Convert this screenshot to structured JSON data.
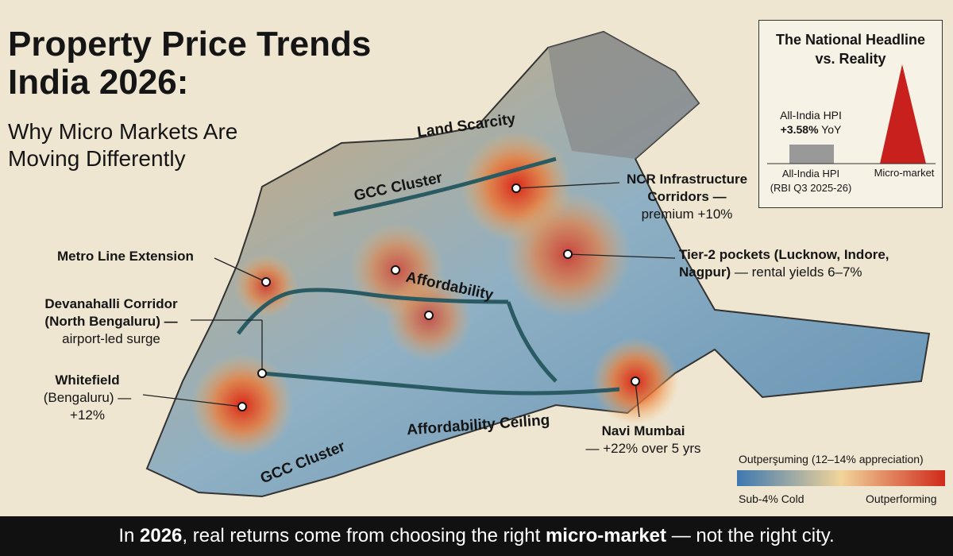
{
  "header": {
    "title": [
      "Property Price Trends",
      "India 2026:"
    ],
    "subtitle": [
      "Why Micro Markets Are",
      "Moving Differently"
    ]
  },
  "map_labels": [
    "Land Scarcity",
    "GCC Cluster",
    "Affordability",
    "Affordability Ceiling",
    "GCC Cluster"
  ],
  "callouts": [
    {
      "lines": [
        "Metro Line Extension"
      ]
    },
    {
      "lines": [
        "Devanahalli Corridor",
        "(North Bengaluru) —",
        "airport-led surge"
      ]
    },
    {
      "lines": [
        "Whitefield",
        "(Bengaluru) —",
        "+12%"
      ]
    },
    {
      "lines": [
        "NCR Infrastructure",
        "Corridors —",
        "premium +10%"
      ]
    },
    {
      "lines": [
        "Tier-2 pockets (Lucknow, Indore,",
        "Nagpur)",
        "— rental yields 6–7%"
      ]
    },
    {
      "lines": [
        "Navi Mumbai",
        "— +22% over 5 yrs"
      ]
    }
  ],
  "inset": {
    "title": [
      "The National Headline",
      "vs. Reality"
    ],
    "bar_caption": [
      "All-India HPI",
      "+3.58%",
      "YoY"
    ],
    "axis_labels": [
      "All-India HPI",
      "(RBI Q3 2025-26)",
      "Micro-market"
    ]
  },
  "legend": {
    "title": "Outperşuming (12–14% appreciation)",
    "low": "Sub-4% Cold",
    "high": "Outperforming"
  },
  "footer": [
    "In",
    "2026",
    ", real returns come from choosing the right",
    "micro-market",
    "— not the right city."
  ]
}
